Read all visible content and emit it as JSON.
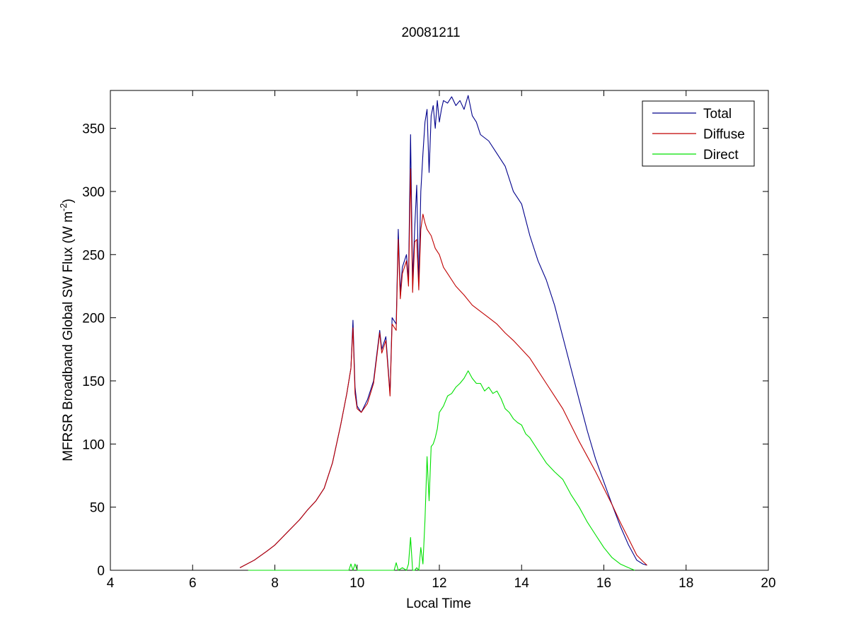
{
  "chart_data": {
    "type": "line",
    "title": "20081211",
    "xlabel": "Local Time",
    "ylabel": "MFRSR Broadband Global SW Flux (W m",
    "ylabel_unit_tail": "-2",
    "ylabel_close": ")",
    "xlim": [
      4,
      20
    ],
    "ylim": [
      0,
      380
    ],
    "xticks": [
      4,
      6,
      8,
      10,
      12,
      14,
      16,
      18,
      20
    ],
    "yticks": [
      0,
      50,
      100,
      150,
      200,
      250,
      300,
      350
    ],
    "grid": false,
    "legend_position": "top-right",
    "series": [
      {
        "name": "Total",
        "color": "#00008b",
        "x": [
          7.15,
          7.5,
          7.8,
          8.0,
          8.3,
          8.6,
          8.8,
          9.0,
          9.2,
          9.4,
          9.6,
          9.75,
          9.85,
          9.9,
          9.95,
          10.0,
          10.1,
          10.25,
          10.4,
          10.55,
          10.6,
          10.7,
          10.8,
          10.85,
          10.95,
          11.0,
          11.05,
          11.1,
          11.2,
          11.25,
          11.3,
          11.35,
          11.4,
          11.45,
          11.5,
          11.55,
          11.6,
          11.65,
          11.7,
          11.75,
          11.8,
          11.85,
          11.9,
          11.95,
          12.0,
          12.05,
          12.1,
          12.2,
          12.3,
          12.4,
          12.5,
          12.6,
          12.7,
          12.8,
          12.9,
          13.0,
          13.2,
          13.4,
          13.6,
          13.8,
          14.0,
          14.2,
          14.4,
          14.6,
          14.8,
          15.0,
          15.2,
          15.4,
          15.6,
          15.8,
          16.0,
          16.2,
          16.4,
          16.6,
          16.8,
          16.95,
          17.05
        ],
        "y": [
          2,
          8,
          15,
          20,
          30,
          40,
          48,
          55,
          65,
          85,
          115,
          140,
          160,
          198,
          145,
          130,
          125,
          135,
          150,
          190,
          175,
          185,
          140,
          200,
          195,
          270,
          220,
          240,
          250,
          230,
          345,
          230,
          270,
          305,
          225,
          300,
          330,
          355,
          365,
          315,
          360,
          368,
          350,
          372,
          355,
          365,
          372,
          370,
          375,
          368,
          372,
          365,
          376,
          360,
          355,
          345,
          340,
          330,
          320,
          300,
          290,
          265,
          245,
          230,
          210,
          185,
          160,
          135,
          110,
          88,
          70,
          52,
          35,
          20,
          8,
          5,
          4
        ]
      },
      {
        "name": "Diffuse",
        "color": "#c00000",
        "x": [
          7.15,
          7.5,
          7.8,
          8.0,
          8.3,
          8.6,
          8.8,
          9.0,
          9.2,
          9.4,
          9.6,
          9.75,
          9.85,
          9.9,
          9.95,
          10.0,
          10.1,
          10.25,
          10.4,
          10.55,
          10.6,
          10.7,
          10.8,
          10.85,
          10.95,
          11.0,
          11.05,
          11.1,
          11.2,
          11.25,
          11.3,
          11.35,
          11.4,
          11.45,
          11.5,
          11.55,
          11.6,
          11.65,
          11.7,
          11.8,
          11.9,
          12.0,
          12.1,
          12.2,
          12.4,
          12.6,
          12.8,
          13.0,
          13.2,
          13.4,
          13.6,
          13.8,
          14.0,
          14.2,
          14.4,
          14.6,
          14.8,
          15.0,
          15.2,
          15.4,
          15.6,
          15.8,
          16.0,
          16.2,
          16.4,
          16.6,
          16.8,
          16.95,
          17.05
        ],
        "y": [
          2,
          8,
          15,
          20,
          30,
          40,
          48,
          55,
          65,
          85,
          115,
          140,
          160,
          192,
          140,
          128,
          125,
          132,
          148,
          188,
          172,
          182,
          138,
          195,
          190,
          262,
          215,
          235,
          245,
          225,
          318,
          220,
          260,
          262,
          222,
          270,
          282,
          275,
          270,
          265,
          255,
          250,
          240,
          235,
          225,
          218,
          210,
          205,
          200,
          195,
          188,
          182,
          175,
          168,
          158,
          148,
          138,
          128,
          115,
          102,
          90,
          78,
          65,
          52,
          38,
          25,
          12,
          7,
          4
        ]
      },
      {
        "name": "Direct",
        "color": "#00e000",
        "x": [
          7.35,
          8.0,
          9.0,
          9.8,
          9.85,
          9.9,
          9.95,
          10.0,
          10.5,
          10.9,
          10.95,
          11.0,
          11.1,
          11.2,
          11.25,
          11.3,
          11.35,
          11.4,
          11.45,
          11.5,
          11.55,
          11.6,
          11.65,
          11.7,
          11.75,
          11.8,
          11.85,
          11.9,
          11.95,
          12.0,
          12.1,
          12.2,
          12.3,
          12.4,
          12.5,
          12.6,
          12.7,
          12.8,
          12.9,
          13.0,
          13.1,
          13.2,
          13.3,
          13.4,
          13.5,
          13.6,
          13.7,
          13.8,
          13.9,
          14.0,
          14.1,
          14.2,
          14.4,
          14.6,
          14.8,
          15.0,
          15.2,
          15.4,
          15.6,
          15.8,
          16.0,
          16.2,
          16.4,
          16.6,
          16.75
        ],
        "y": [
          0,
          0,
          0,
          0,
          5,
          0,
          5,
          0,
          0,
          0,
          6,
          0,
          2,
          0,
          5,
          26,
          0,
          0,
          2,
          0,
          18,
          5,
          40,
          90,
          55,
          98,
          100,
          105,
          112,
          125,
          130,
          138,
          140,
          145,
          148,
          152,
          158,
          152,
          148,
          148,
          142,
          145,
          140,
          142,
          136,
          128,
          125,
          120,
          117,
          115,
          108,
          105,
          95,
          85,
          78,
          72,
          60,
          50,
          38,
          28,
          18,
          10,
          5,
          2,
          0
        ]
      }
    ]
  }
}
